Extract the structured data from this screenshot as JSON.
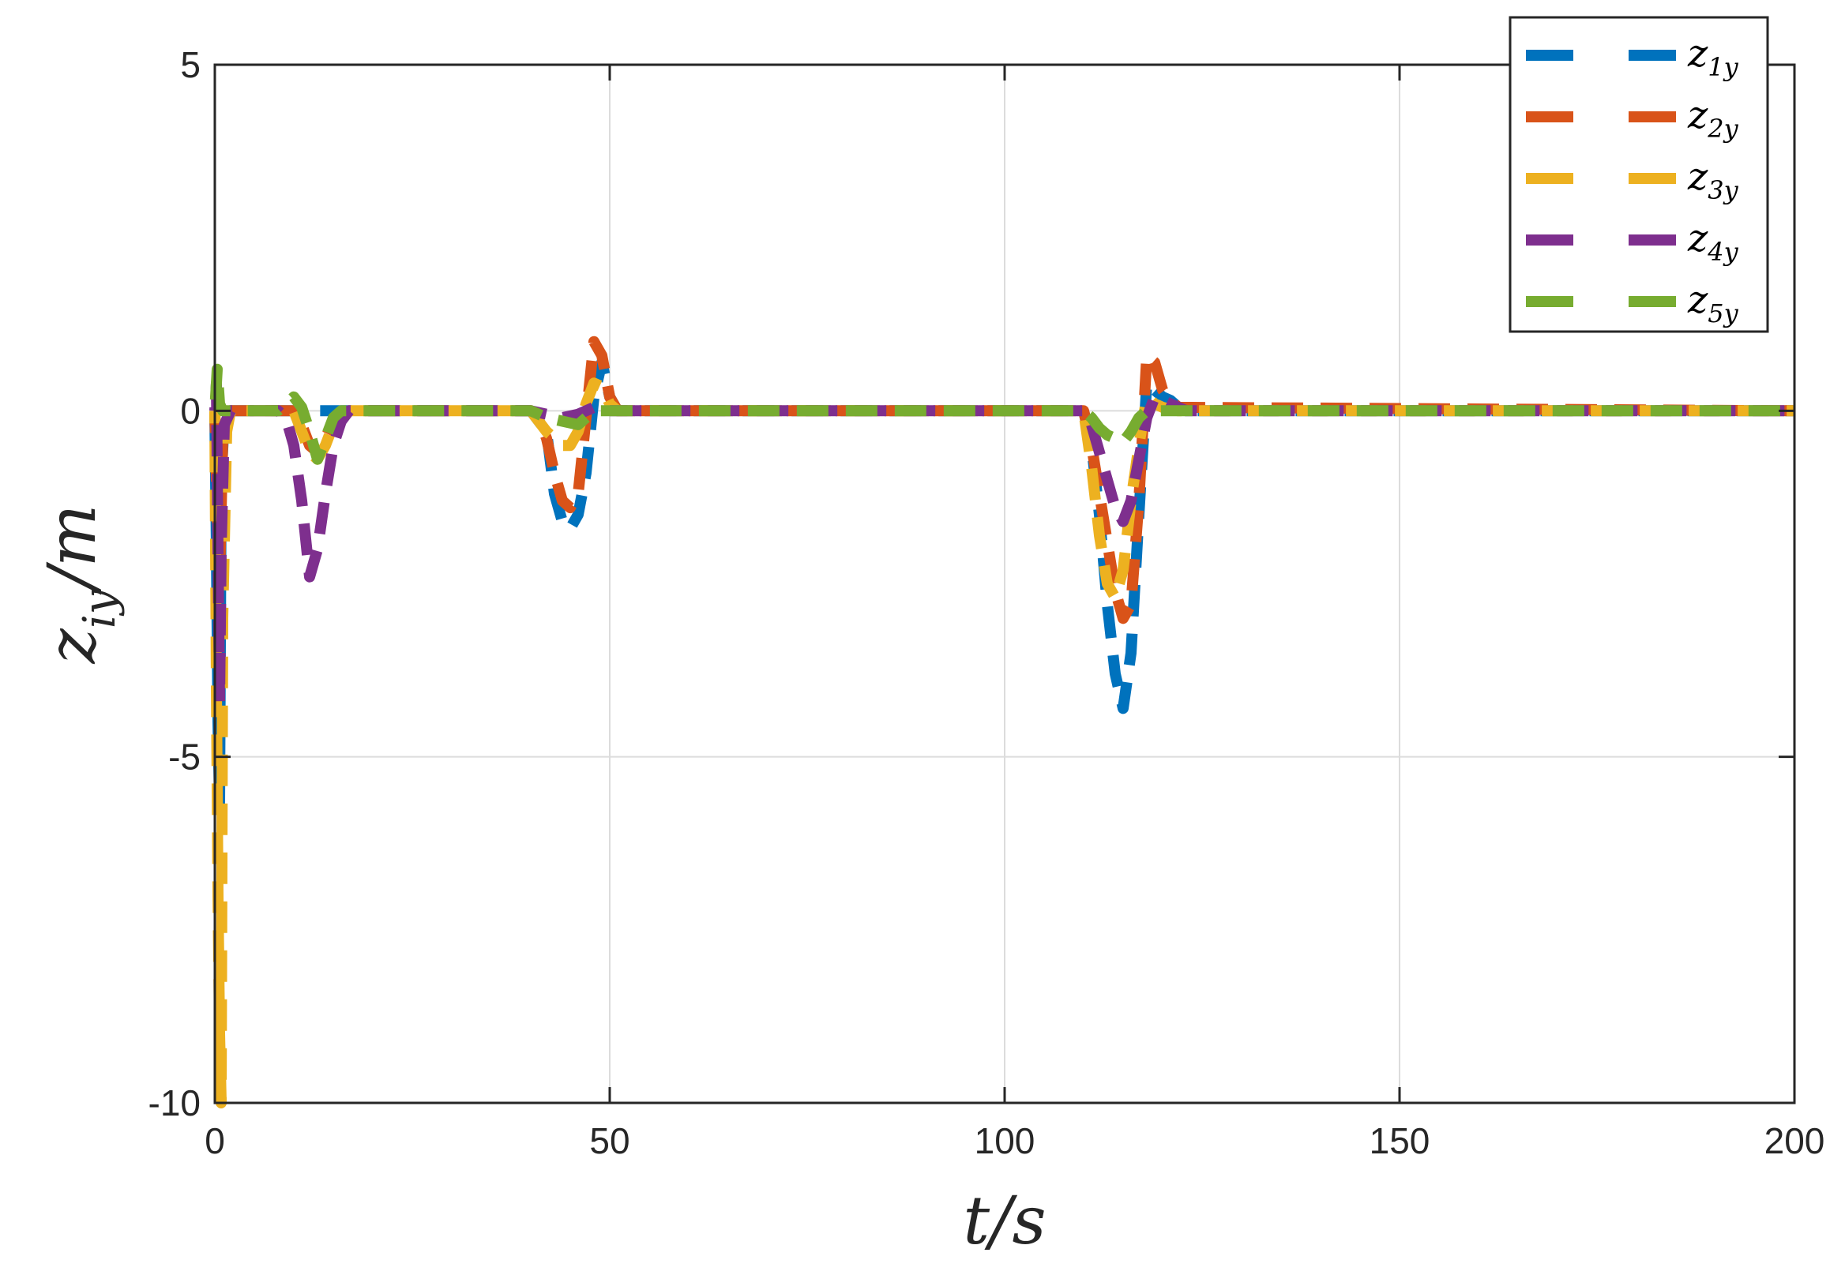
{
  "chart_data": {
    "type": "line",
    "title": "",
    "xlabel": "t/s",
    "ylabel": "z_iy/m",
    "xlim": [
      0,
      200
    ],
    "ylim": [
      -10,
      5
    ],
    "xticks": [
      0,
      50,
      100,
      150,
      200
    ],
    "yticks": [
      -10,
      -5,
      0,
      5
    ],
    "xtick_labels": [
      "0",
      "50",
      "100",
      "150",
      "200"
    ],
    "ytick_labels": [
      "-10",
      "-5",
      "0",
      "5"
    ],
    "grid": true,
    "legend_position": "top-right",
    "line_style": "dashed",
    "series": [
      {
        "name": "z_1y",
        "color": "#0072BD",
        "x": [
          0,
          0.2,
          0.4,
          0.6,
          0.8,
          1.2,
          2,
          4,
          40,
          42,
          43,
          44,
          45,
          46,
          47,
          48,
          49,
          50,
          51,
          110,
          111,
          112,
          113,
          114,
          115,
          116,
          117,
          118,
          119,
          120,
          121,
          122,
          123,
          200
        ],
        "y": [
          0,
          -2.0,
          -4.5,
          -5.7,
          -1.0,
          -0.1,
          0,
          0,
          0,
          -0.3,
          -1.2,
          -1.6,
          -1.7,
          -1.5,
          -0.9,
          0.2,
          0.7,
          0.2,
          0,
          0,
          -0.5,
          -1.5,
          -2.8,
          -3.8,
          -4.3,
          -3.5,
          -1.5,
          0.4,
          0.3,
          0.2,
          0.15,
          0.05,
          0,
          0
        ]
      },
      {
        "name": "z_2y",
        "color": "#D95319",
        "x": [
          0,
          0.3,
          0.6,
          1.0,
          2,
          10,
          11,
          12,
          13,
          14,
          15,
          16,
          17,
          40,
          41,
          42,
          43,
          44,
          45,
          46,
          47,
          48,
          49,
          50,
          51,
          110,
          111,
          112,
          113,
          114,
          115,
          116,
          117,
          118,
          119,
          120,
          121,
          122,
          200
        ],
        "y": [
          0,
          -1.5,
          -2.5,
          -0.4,
          0,
          0,
          -0.2,
          -0.5,
          -0.6,
          -0.4,
          -0.15,
          -0.05,
          0,
          0,
          -0.1,
          -0.4,
          -0.9,
          -1.3,
          -1.4,
          -1.2,
          -0.1,
          1.0,
          0.8,
          0.2,
          0,
          0,
          -0.5,
          -1.2,
          -1.9,
          -2.6,
          -3.0,
          -2.8,
          -1.3,
          0.8,
          0.7,
          0.3,
          0.15,
          0.05,
          0
        ]
      },
      {
        "name": "z_3y",
        "color": "#EDB120",
        "x": [
          0,
          0.2,
          0.4,
          0.6,
          0.8,
          1.0,
          1.5,
          2,
          10,
          11,
          12,
          13,
          14,
          15,
          16,
          17,
          40,
          42,
          44,
          45,
          46,
          47,
          48,
          49,
          50,
          51,
          110,
          111,
          112,
          113,
          114,
          115,
          116,
          117,
          118,
          119,
          120,
          121,
          122,
          200
        ],
        "y": [
          0,
          -4.0,
          -7.0,
          -9.0,
          -10.0,
          -3.0,
          -0.3,
          0,
          0,
          -0.3,
          -0.6,
          -0.7,
          -0.5,
          -0.2,
          -0.05,
          0,
          0,
          -0.3,
          -0.5,
          -0.5,
          -0.3,
          0.1,
          0.4,
          0.35,
          0.1,
          0,
          0,
          -0.8,
          -1.8,
          -2.5,
          -2.7,
          -2.3,
          -1.3,
          -0.5,
          0.2,
          0.1,
          0.05,
          0.02,
          0,
          0
        ]
      },
      {
        "name": "z_4y",
        "color": "#7E2F8E",
        "x": [
          0,
          0.2,
          0.4,
          0.6,
          0.8,
          1.2,
          2,
          8,
          9,
          10,
          11,
          12,
          13,
          14,
          15,
          16,
          17,
          40,
          42,
          44,
          46,
          47,
          48,
          50,
          110,
          111,
          112,
          113,
          114,
          115,
          116,
          117,
          118,
          119,
          120,
          121,
          122,
          123,
          200
        ],
        "y": [
          0,
          0.4,
          -2.0,
          -4.2,
          -2.0,
          -0.2,
          0,
          0,
          -0.1,
          -0.5,
          -1.3,
          -2.4,
          -2.0,
          -1.2,
          -0.5,
          -0.15,
          0,
          0,
          -0.05,
          -0.1,
          -0.05,
          0,
          0.05,
          0,
          0,
          -0.2,
          -0.6,
          -1.0,
          -1.4,
          -1.6,
          -1.3,
          -0.7,
          -0.1,
          0.2,
          0.15,
          0.1,
          0.05,
          0,
          0
        ]
      },
      {
        "name": "z_5y",
        "color": "#77AC30",
        "x": [
          0,
          0.3,
          0.6,
          1.0,
          2,
          8,
          9,
          10,
          11,
          12,
          13,
          14,
          15,
          16,
          40,
          42,
          44,
          46,
          47,
          48,
          50,
          110,
          111,
          112,
          113,
          114,
          115,
          116,
          117,
          118,
          119,
          120,
          200
        ],
        "y": [
          0,
          0.6,
          0.1,
          0,
          0,
          0,
          0.1,
          0.2,
          0.05,
          -0.3,
          -0.7,
          -0.4,
          -0.1,
          0,
          0,
          -0.1,
          -0.15,
          -0.2,
          -0.1,
          0,
          0,
          0,
          -0.1,
          -0.25,
          -0.35,
          -0.4,
          -0.45,
          -0.3,
          -0.1,
          0,
          0,
          0,
          0
        ]
      }
    ]
  }
}
